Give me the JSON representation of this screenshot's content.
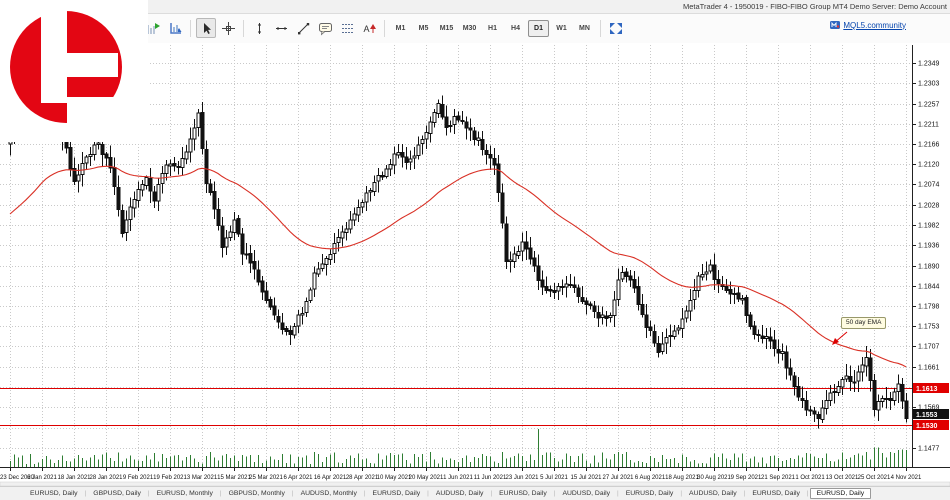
{
  "window": {
    "title": "MetaTrader 4 - 1950019 - FIBO-FIBO Group MT4 Demo Server: Demo Account"
  },
  "toolbar": {
    "timeframes": [
      "M1",
      "M5",
      "M15",
      "M30",
      "H1",
      "H4",
      "D1",
      "W1",
      "MN"
    ],
    "active_timeframe": "D1",
    "mql5_link_label": "MQL5.community"
  },
  "logo": {
    "brand_color": "#e30613"
  },
  "chart_data": {
    "type": "candlestick",
    "symbol": "EURUSD",
    "timeframe": "Daily",
    "title": "EURUSD, Daily",
    "bars": 225,
    "bars_per_date_label": 8,
    "ylim": [
      1.1434,
      1.239
    ],
    "grid": true,
    "price_ticks": [
      "1.2349",
      "1.2303",
      "1.2257",
      "1.2211",
      "1.2166",
      "1.2120",
      "1.2074",
      "1.2028",
      "1.1982",
      "1.1936",
      "1.1890",
      "1.1844",
      "1.1798",
      "1.1753",
      "1.1707",
      "1.1661",
      "1.1615",
      "1.1569",
      "1.1523",
      "1.1477"
    ],
    "hidden_ticks": [
      "1.1615",
      "1.1523"
    ],
    "date_labels": [
      "23 Dec 2020",
      "6 Jan 2021",
      "18 Jan 2021",
      "28 Jan 2021",
      "9 Feb 2021",
      "19 Feb 2021",
      "3 Mar 2021",
      "15 Mar 2021",
      "25 Mar 2021",
      "6 Apr 2021",
      "16 Apr 2021",
      "28 Apr 2021",
      "10 May 2021",
      "20 May 2021",
      "1 Jun 2021",
      "11 Jun 2021",
      "23 Jun 2021",
      "5 Jul 2021",
      "15 Jul 2021",
      "27 Jul 2021",
      "6 Aug 2021",
      "18 Aug 2021",
      "30 Aug 2021",
      "9 Sep 2021",
      "21 Sep 2021",
      "1 Oct 2021",
      "13 Oct 2021",
      "25 Oct 2021",
      "4 Nov 2021"
    ],
    "close_pivots": [
      [
        0,
        1.219
      ],
      [
        4,
        1.2248
      ],
      [
        8,
        1.233
      ],
      [
        11,
        1.2215
      ],
      [
        14,
        1.216
      ],
      [
        16,
        1.2075
      ],
      [
        19,
        1.2135
      ],
      [
        22,
        1.2165
      ],
      [
        25,
        1.211
      ],
      [
        28,
        1.1962
      ],
      [
        31,
        1.204
      ],
      [
        34,
        1.209
      ],
      [
        36,
        1.2045
      ],
      [
        39,
        1.212
      ],
      [
        42,
        1.2105
      ],
      [
        45,
        1.217
      ],
      [
        47,
        1.2235
      ],
      [
        49,
        1.208
      ],
      [
        51,
        1.2015
      ],
      [
        53,
        1.193
      ],
      [
        56,
        1.199
      ],
      [
        58,
        1.192
      ],
      [
        61,
        1.1885
      ],
      [
        64,
        1.1815
      ],
      [
        66,
        1.178
      ],
      [
        68,
        1.1745
      ],
      [
        70,
        1.173
      ],
      [
        73,
        1.179
      ],
      [
        76,
        1.1865
      ],
      [
        79,
        1.1905
      ],
      [
        82,
        1.195
      ],
      [
        85,
        1.199
      ],
      [
        88,
        1.203
      ],
      [
        91,
        1.208
      ],
      [
        94,
        1.2105
      ],
      [
        97,
        1.215
      ],
      [
        99,
        1.212
      ],
      [
        101,
        1.2135
      ],
      [
        103,
        1.218
      ],
      [
        105,
        1.222
      ],
      [
        107,
        1.225
      ],
      [
        109,
        1.2195
      ],
      [
        111,
        1.2225
      ],
      [
        113,
        1.222
      ],
      [
        115,
        1.219
      ],
      [
        117,
        1.218
      ],
      [
        119,
        1.2145
      ],
      [
        121,
        1.211
      ],
      [
        123,
        1.199
      ],
      [
        124,
        1.1895
      ],
      [
        126,
        1.192
      ],
      [
        128,
        1.194
      ],
      [
        130,
        1.1905
      ],
      [
        132,
        1.186
      ],
      [
        134,
        1.183
      ],
      [
        136,
        1.1825
      ],
      [
        138,
        1.1845
      ],
      [
        140,
        1.1855
      ],
      [
        142,
        1.1815
      ],
      [
        144,
        1.18
      ],
      [
        146,
        1.1785
      ],
      [
        148,
        1.177
      ],
      [
        150,
        1.1775
      ],
      [
        152,
        1.1865
      ],
      [
        154,
        1.187
      ],
      [
        156,
        1.1835
      ],
      [
        158,
        1.178
      ],
      [
        160,
        1.1735
      ],
      [
        162,
        1.17
      ],
      [
        164,
        1.172
      ],
      [
        166,
        1.1745
      ],
      [
        168,
        1.177
      ],
      [
        170,
        1.181
      ],
      [
        172,
        1.1875
      ],
      [
        175,
        1.1885
      ],
      [
        177,
        1.185
      ],
      [
        179,
        1.184
      ],
      [
        181,
        1.182
      ],
      [
        183,
        1.181
      ],
      [
        185,
        1.1755
      ],
      [
        187,
        1.173
      ],
      [
        189,
        1.1725
      ],
      [
        191,
        1.17
      ],
      [
        193,
        1.169
      ],
      [
        195,
        1.1635
      ],
      [
        197,
        1.1595
      ],
      [
        199,
        1.1565
      ],
      [
        201,
        1.1555
      ],
      [
        202,
        1.154
      ],
      [
        204,
        1.158
      ],
      [
        206,
        1.1605
      ],
      [
        208,
        1.164
      ],
      [
        210,
        1.1625
      ],
      [
        212,
        1.1645
      ],
      [
        214,
        1.168
      ],
      [
        216,
        1.1565
      ],
      [
        218,
        1.1595
      ],
      [
        220,
        1.158
      ],
      [
        222,
        1.1615
      ],
      [
        224,
        1.1553
      ]
    ],
    "ema": {
      "period": 50,
      "label": "50 day EMA",
      "color": "#d93025",
      "seed": 1.2
    },
    "hlines": [
      {
        "price": 1.1613,
        "label": "1.1613",
        "color": "#dd0000"
      },
      {
        "price": 1.153,
        "label": "1.1530",
        "color": "#dd0000"
      }
    ],
    "bid": 1.1553,
    "bid_label": "1.1553",
    "volume": {
      "color": "#2e7d32",
      "spike_bar": 132
    }
  },
  "tabs": {
    "items": [
      "EURUSD, Daily",
      "GBPUSD, Daily",
      "EURUSD, Monthly",
      "GBPUSD, Monthly",
      "AUDUSD, Monthly",
      "EURUSD, Daily",
      "AUDUSD, Daily",
      "EURUSD, Daily",
      "AUDUSD, Daily",
      "EURUSD, Daily",
      "AUDUSD, Daily",
      "EURUSD, Daily",
      "EURUSD, Daily"
    ],
    "active_index": 12
  }
}
